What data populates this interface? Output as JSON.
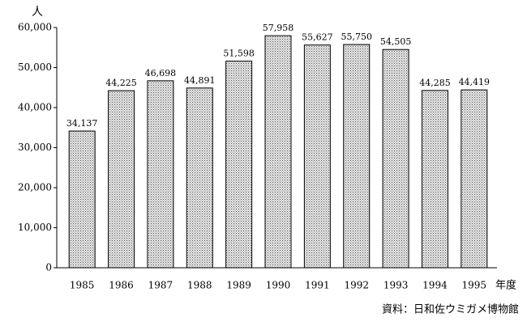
{
  "chart_data": {
    "type": "bar",
    "y_axis_label": "人",
    "x_axis_label": "年度",
    "source": "資料：日和佐ウミガメ博物館",
    "categories": [
      "1985",
      "1986",
      "1987",
      "1988",
      "1989",
      "1990",
      "1991",
      "1992",
      "1993",
      "1994",
      "1995"
    ],
    "values": [
      34137,
      44225,
      46698,
      44891,
      51598,
      57958,
      55627,
      55750,
      54505,
      44285,
      44419
    ],
    "value_labels": [
      "34,137",
      "44,225",
      "46,698",
      "44,891",
      "51,598",
      "57,958",
      "55,627",
      "55,750",
      "54,505",
      "44,285",
      "44,419"
    ],
    "color": "#c4c4c4",
    "ylim": [
      0,
      60000
    ],
    "yticks": [
      0,
      {
        "value": 10000,
        "label": "10,000"
      },
      {
        "value": 20000,
        "label": "20,000"
      },
      {
        "value": 30000,
        "label": "30,000"
      },
      {
        "value": 40000,
        "label": "40,000"
      },
      {
        "value": 50000,
        "label": "50,000"
      },
      {
        "value": 60000,
        "label": "60,000"
      }
    ]
  }
}
